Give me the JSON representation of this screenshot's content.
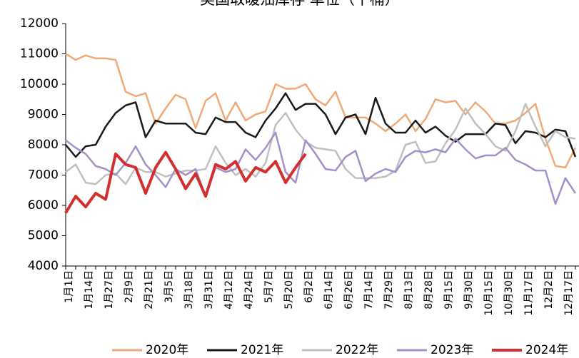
{
  "chart_data": {
    "type": "line",
    "title": "美国取暖油库存 单位（千桶）",
    "categories": [
      "1月1日",
      null,
      "1月14日",
      null,
      "1月27日",
      null,
      "2月9日",
      null,
      "2月21日",
      null,
      "3月5日",
      null,
      "3月18日",
      null,
      "3月31日",
      null,
      "4月12日",
      null,
      "4月24日",
      null,
      "5月7日",
      null,
      "5月20日",
      null,
      "6月2日",
      null,
      "6月14日",
      null,
      "6月26日",
      null,
      "7月14日",
      null,
      "7月29日",
      null,
      "8月13日",
      null,
      "8月28日",
      null,
      "9月15日",
      null,
      "9月30日",
      null,
      "10月15日",
      null,
      "10月30日",
      null,
      "11月17日",
      null,
      "12月2日",
      null,
      "12月17日",
      null
    ],
    "series": [
      {
        "name": "2020年",
        "color": "#f0aa78",
        "values": [
          11000,
          10800,
          10950,
          10850,
          10850,
          10800,
          9750,
          9600,
          9700,
          8700,
          9200,
          9650,
          9500,
          8550,
          9450,
          9700,
          8800,
          9400,
          8800,
          9000,
          9100,
          10000,
          9850,
          9850,
          10000,
          9500,
          9300,
          9750,
          8900,
          8900,
          8900,
          8700,
          8450,
          8700,
          9000,
          8450,
          8850,
          9500,
          9400,
          9450,
          9000,
          9400,
          9100,
          8700,
          8700,
          8800,
          9050,
          9350,
          8200,
          7300,
          7250,
          7900
        ]
      },
      {
        "name": "2021年",
        "color": "#1a1a1a",
        "values": [
          8000,
          7600,
          7950,
          8000,
          8600,
          9050,
          9300,
          9400,
          8250,
          8800,
          8700,
          8700,
          8700,
          8400,
          8350,
          8900,
          8750,
          8750,
          8400,
          8250,
          8800,
          9200,
          9700,
          9150,
          9350,
          9350,
          9000,
          8350,
          8900,
          9000,
          8350,
          9550,
          8700,
          8400,
          8400,
          8800,
          8400,
          8600,
          8300,
          8100,
          8350,
          8350,
          8350,
          8700,
          8650,
          8050,
          8450,
          8400,
          8250,
          8500,
          8450,
          7600
        ]
      },
      {
        "name": "2022年",
        "color": "#c0c0c0",
        "values": [
          7100,
          7350,
          6750,
          6700,
          7000,
          7050,
          6700,
          7250,
          7100,
          7100,
          6950,
          7050,
          7150,
          7150,
          7200,
          7950,
          7400,
          7000,
          7200,
          6950,
          7400,
          8650,
          9050,
          8500,
          8100,
          7900,
          7850,
          7800,
          7200,
          6900,
          6900,
          6900,
          6950,
          7150,
          8000,
          8100,
          7400,
          7450,
          8050,
          8500,
          9200,
          8700,
          8350,
          7950,
          7800,
          8450,
          9350,
          8600,
          7950,
          8450,
          8250,
          8200
        ]
      },
      {
        "name": "2023年",
        "color": "#a590c8",
        "values": [
          8150,
          7900,
          7700,
          7300,
          7200,
          7000,
          7400,
          7950,
          7350,
          7000,
          6600,
          7200,
          7000,
          7200,
          6300,
          7250,
          7100,
          7200,
          7850,
          7500,
          7900,
          8400,
          7100,
          6750,
          8150,
          7700,
          7200,
          7150,
          7600,
          7800,
          6800,
          7050,
          7200,
          7100,
          7600,
          7800,
          7750,
          7850,
          7750,
          8200,
          7850,
          7550,
          7650,
          7650,
          7900,
          7500,
          7350,
          7150,
          7150,
          6050,
          6900,
          6400
        ]
      },
      {
        "name": "2024年",
        "color": "#d42f2f",
        "values": [
          5750,
          6300,
          5950,
          6400,
          6200,
          7700,
          7350,
          7250,
          6400,
          7250,
          7750,
          7200,
          6550,
          7050,
          6300,
          7350,
          7200,
          7450,
          6800,
          7250,
          7100,
          7450,
          6750,
          7250,
          7700,
          null,
          null,
          null,
          null,
          null,
          null,
          null,
          null,
          null,
          null,
          null,
          null,
          null,
          null,
          null,
          null,
          null,
          null,
          null,
          null,
          null,
          null,
          null,
          null,
          null,
          null,
          null
        ]
      }
    ],
    "ylim": [
      4000,
      12000
    ],
    "yticks": [
      4000,
      5000,
      6000,
      7000,
      8000,
      9000,
      10000,
      11000,
      12000
    ]
  }
}
